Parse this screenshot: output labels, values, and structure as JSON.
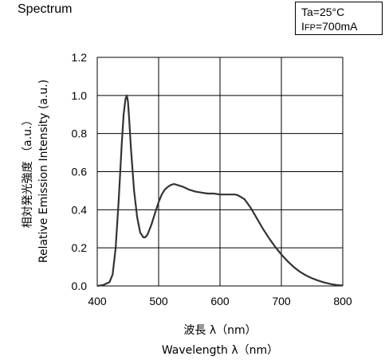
{
  "title": "Spectrum",
  "conditions": {
    "ta": "Ta=25°C",
    "ifp_prefix": "I",
    "ifp_sub": "FP",
    "ifp_value": "=700mA"
  },
  "chart_data": {
    "type": "line",
    "title": "Spectrum",
    "xlabel_jp": "波長 λ（nm）",
    "xlabel": "Wavelength λ（nm）",
    "ylabel_jp": "相対発光強度 （a.u.）",
    "ylabel": "Relative Emission Intensity (a.u.)",
    "xlim": [
      400,
      800
    ],
    "ylim": [
      0.0,
      1.2
    ],
    "xticks": [
      400,
      500,
      600,
      700,
      800
    ],
    "xtick_labels": [
      "400",
      "500",
      "600",
      "700",
      "800"
    ],
    "yticks": [
      0.0,
      0.2,
      0.4,
      0.6,
      0.8,
      1.0,
      1.2
    ],
    "ytick_labels": [
      "0.0",
      "0.2",
      "0.4",
      "0.6",
      "0.8",
      "1.0",
      "1.2"
    ],
    "grid": true,
    "series": [
      {
        "x": [
          400,
          410,
          420,
          425,
          430,
          435,
          440,
          443,
          446,
          448,
          450,
          452,
          455,
          460,
          465,
          470,
          475,
          478,
          482,
          488,
          495,
          500,
          505,
          510,
          515,
          520,
          525,
          530,
          540,
          550,
          560,
          570,
          580,
          590,
          600,
          610,
          620,
          625,
          630,
          640,
          650,
          660,
          670,
          680,
          690,
          700,
          710,
          720,
          730,
          740,
          750,
          760,
          770,
          780,
          790,
          800
        ],
        "y": [
          0.0,
          0.005,
          0.02,
          0.06,
          0.2,
          0.45,
          0.75,
          0.9,
          0.98,
          1.0,
          0.97,
          0.88,
          0.72,
          0.5,
          0.36,
          0.28,
          0.255,
          0.255,
          0.27,
          0.32,
          0.39,
          0.44,
          0.48,
          0.505,
          0.52,
          0.53,
          0.535,
          0.53,
          0.52,
          0.505,
          0.495,
          0.49,
          0.485,
          0.485,
          0.48,
          0.48,
          0.48,
          0.48,
          0.475,
          0.455,
          0.41,
          0.355,
          0.3,
          0.25,
          0.205,
          0.165,
          0.13,
          0.1,
          0.075,
          0.055,
          0.04,
          0.028,
          0.018,
          0.01,
          0.005,
          0.002
        ]
      }
    ]
  }
}
